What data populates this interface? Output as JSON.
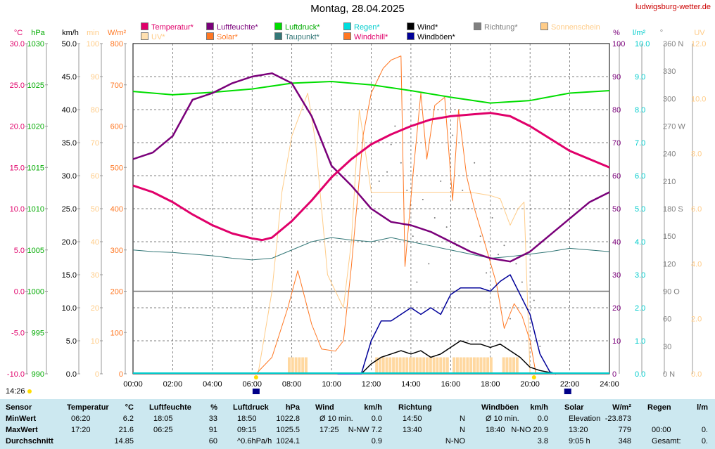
{
  "header": {
    "title": "Montag, 28.04.2025",
    "site": "ludwigsburg-wetter.de",
    "time": "14:26"
  },
  "colors": {
    "temperature": "#e0006a",
    "humidity": "#7a007a",
    "pressure": "#00dd00",
    "rain": "#00cccc",
    "wind": "#000000",
    "direction": "#808080",
    "sunshine": "#ffcc88",
    "uv": "#ffcc88",
    "solar": "#ff7722",
    "dewpoint": "#337777",
    "windchill": "#ff7722",
    "gust": "#000099"
  },
  "legend": [
    {
      "label": "Temperatur*",
      "color": "#e0006a",
      "text": "#e0006a"
    },
    {
      "label": "Luftfeuchte*",
      "color": "#7a007a",
      "text": "#7a007a"
    },
    {
      "label": "Luftdruck*",
      "color": "#00dd00",
      "text": "#00aa00"
    },
    {
      "label": "Regen*",
      "color": "#00dddd",
      "text": "#00cccc"
    },
    {
      "label": "Wind*",
      "color": "#000000",
      "text": "#000000"
    },
    {
      "label": "Richtung*",
      "color": "#808080",
      "text": "#808080"
    },
    {
      "label": "Sonnenschein",
      "color": "#ffcc88",
      "text": "#ffcc88"
    },
    {
      "label": "UV*",
      "color": "#ffe0b0",
      "text": "#ffcc88"
    },
    {
      "label": "Solar*",
      "color": "#ff7722",
      "text": "#ff7722"
    },
    {
      "label": "Taupunkt*",
      "color": "#337777",
      "text": "#337777"
    },
    {
      "label": "Windchill*",
      "color": "#ff7722",
      "text": "#e0006a"
    },
    {
      "label": "Windböen*",
      "color": "#000099",
      "text": "#000000"
    }
  ],
  "chart_data": {
    "type": "line",
    "x_ticks": [
      "00:00",
      "02:00",
      "04:00",
      "06:00",
      "08:00",
      "10:00",
      "12:00",
      "14:00",
      "16:00",
      "18:00",
      "20:00",
      "22:00",
      "24:00"
    ],
    "axes_left": [
      {
        "unit": "°C",
        "color": "#e0006a",
        "ticks": [
          "30.0",
          "25.0",
          "20.0",
          "15.0",
          "10.0",
          "5.0",
          "0.0",
          "-5.0",
          "-10.0"
        ],
        "range": [
          -10,
          30
        ]
      },
      {
        "unit": "hPa",
        "color": "#00aa00",
        "ticks": [
          "1030",
          "1025",
          "1020",
          "1015",
          "1010",
          "1005",
          "1000",
          "995",
          "990"
        ],
        "range": [
          990,
          1030
        ]
      },
      {
        "unit": "km/h",
        "color": "#000000",
        "ticks": [
          "50.0",
          "45.0",
          "40.0",
          "35.0",
          "30.0",
          "25.0",
          "20.0",
          "15.0",
          "10.0",
          "5.0",
          "0.0"
        ],
        "range": [
          0,
          50
        ]
      },
      {
        "unit": "min",
        "color": "#ffcc88",
        "ticks": [
          "100",
          "90",
          "80",
          "70",
          "60",
          "50",
          "40",
          "30",
          "20",
          "10",
          "0"
        ],
        "range": [
          0,
          100
        ]
      },
      {
        "unit": "W/m²",
        "color": "#ff7722",
        "ticks": [
          "800",
          "700",
          "600",
          "500",
          "400",
          "300",
          "200",
          "100",
          "0"
        ],
        "range": [
          0,
          800
        ]
      }
    ],
    "axes_right": [
      {
        "unit": "%",
        "color": "#7a007a",
        "ticks": [
          "100",
          "90",
          "80",
          "70",
          "60",
          "50",
          "40",
          "30",
          "20",
          "10",
          "0"
        ],
        "range": [
          0,
          100
        ]
      },
      {
        "unit": "l/m²",
        "color": "#00cccc",
        "ticks": [
          "10.0",
          "9.0",
          "8.0",
          "7.0",
          "6.0",
          "5.0",
          "4.0",
          "3.0",
          "2.0",
          "1.0",
          "0.0"
        ],
        "range": [
          0,
          10
        ]
      },
      {
        "unit": "°",
        "color": "#808080",
        "ticks": [
          "360 N",
          "330",
          "300",
          "270 W",
          "240",
          "210",
          "180 S",
          "150",
          "120",
          "90 O",
          "60",
          "30",
          "0 N"
        ],
        "range": [
          0,
          360
        ]
      },
      {
        "unit": "UV",
        "color": "#ffcc88",
        "ticks": [
          "12.0",
          "10.0",
          "8.0",
          "6.0",
          "4.0",
          "2.0",
          "0.0"
        ],
        "range": [
          0,
          12
        ]
      }
    ],
    "series": [
      {
        "key": "temperature",
        "axis": "°C",
        "x": [
          0,
          1,
          2,
          3,
          4,
          5,
          6,
          6.5,
          7,
          8,
          9,
          10,
          11,
          12,
          13,
          14,
          15,
          16,
          17,
          18,
          19,
          20,
          21,
          22,
          23,
          24
        ],
        "y": [
          12.8,
          12.0,
          10.8,
          9.3,
          8.0,
          7.0,
          6.4,
          6.2,
          6.5,
          8.5,
          11.0,
          13.8,
          16.0,
          17.8,
          19.0,
          20.0,
          20.8,
          21.2,
          21.4,
          21.6,
          21.2,
          20.0,
          18.5,
          17.0,
          16.0,
          15.0
        ]
      },
      {
        "key": "humidity",
        "axis": "%",
        "x": [
          0,
          1,
          2,
          3,
          4,
          5,
          6,
          7,
          8,
          9,
          10,
          11,
          12,
          13,
          14,
          15,
          16,
          17,
          18,
          19,
          20,
          21,
          22,
          23,
          24
        ],
        "y": [
          65,
          67,
          72,
          83,
          85,
          88,
          90,
          91,
          88,
          78,
          63,
          57,
          50,
          46,
          45,
          43,
          40,
          37,
          35,
          34,
          37,
          42,
          47,
          52,
          55
        ]
      },
      {
        "key": "pressure",
        "axis": "hPa",
        "x": [
          0,
          2,
          4,
          6,
          8,
          10,
          12,
          14,
          16,
          18,
          20,
          22,
          24
        ],
        "y": [
          1024.2,
          1023.8,
          1024.1,
          1024.5,
          1025.2,
          1025.4,
          1025.0,
          1024.3,
          1023.5,
          1022.8,
          1023.1,
          1024.0,
          1024.3
        ]
      },
      {
        "key": "dewpoint",
        "axis": "°C",
        "x": [
          0,
          1,
          2,
          3,
          4,
          5,
          6,
          7,
          8,
          9,
          10,
          11,
          12,
          13,
          14,
          15,
          16,
          17,
          18,
          19,
          20,
          21,
          22,
          23,
          24
        ],
        "y": [
          5.0,
          4.8,
          4.7,
          4.5,
          4.3,
          4.0,
          3.8,
          4.0,
          5.0,
          6.0,
          6.5,
          6.2,
          6.0,
          6.5,
          6.0,
          5.5,
          5.0,
          4.5,
          4.0,
          4.2,
          4.5,
          4.8,
          5.2,
          5.0,
          4.8
        ]
      },
      {
        "key": "solar",
        "axis": "W/m²",
        "x": [
          6.2,
          7,
          7.8,
          8.3,
          9,
          9.5,
          10.2,
          10.6,
          11,
          11.6,
          12,
          12.6,
          13,
          13.5,
          13.7,
          14.1,
          14.5,
          14.8,
          15.2,
          15.7,
          16.1,
          16.4,
          16.8,
          17.2,
          17.7,
          18.3,
          18.7,
          19.2,
          19.6,
          20.0,
          20.3
        ],
        "y": [
          0,
          40,
          160,
          250,
          120,
          60,
          55,
          80,
          260,
          580,
          680,
          740,
          760,
          770,
          260,
          480,
          680,
          520,
          650,
          670,
          420,
          640,
          480,
          400,
          320,
          220,
          110,
          170,
          140,
          80,
          0
        ]
      },
      {
        "key": "sunshine_envelope",
        "axis": "min",
        "x": [
          6.3,
          7.0,
          7.5,
          8.0,
          8.8,
          9.2,
          9.8,
          10.6,
          11.0,
          11.4,
          12.0,
          13.0,
          14.0,
          15.0,
          16.0,
          17.0,
          18.0,
          18.5,
          19.0,
          19.4,
          19.7,
          20.0
        ],
        "y": [
          0,
          25,
          55,
          72,
          85,
          70,
          30,
          20,
          40,
          80,
          55,
          55,
          55,
          55,
          55,
          55,
          54,
          53,
          45,
          50,
          52,
          0
        ]
      },
      {
        "key": "wind",
        "axis": "km/h",
        "x": [
          11.5,
          12,
          12.5,
          13,
          13.5,
          14,
          14.5,
          15,
          15.5,
          16,
          16.5,
          17,
          17.5,
          18,
          18.5,
          19,
          19.5,
          20,
          20.5,
          21,
          21.3
        ],
        "y": [
          0,
          1.5,
          2.5,
          3.0,
          3.5,
          3.0,
          3.5,
          2.5,
          3.0,
          4.0,
          5.0,
          4.5,
          4.5,
          4.0,
          4.5,
          3.5,
          2.5,
          1.0,
          0.5,
          0.2,
          0
        ]
      },
      {
        "key": "gust",
        "axis": "km/h",
        "x": [
          10.3,
          11.5,
          12,
          12.5,
          13,
          13.5,
          14,
          14.5,
          15,
          15.5,
          16,
          16.5,
          17,
          17.5,
          18,
          18.5,
          19,
          19.5,
          20,
          20.5,
          21,
          21.3
        ],
        "y": [
          0,
          0,
          5,
          8,
          8,
          9,
          10,
          9,
          10,
          9,
          12,
          13,
          13,
          13,
          12.5,
          14,
          15,
          12,
          9,
          3,
          0.3,
          0
        ]
      }
    ]
  },
  "table": {
    "headers": [
      {
        "label": "Sensor",
        "unit": ""
      },
      {
        "label": "Temperatur",
        "unit": "°C"
      },
      {
        "label": "Luftfeuchte",
        "unit": "%"
      },
      {
        "label": "Luftdruck",
        "unit": "hPa"
      },
      {
        "label": "Wind",
        "unit": "km/h"
      },
      {
        "label": "Richtung",
        "unit": ""
      },
      {
        "label": "Windböen",
        "unit": "km/h"
      },
      {
        "label": "Solar",
        "unit": "W/m²"
      },
      {
        "label": "Regen",
        "unit": "l/m"
      }
    ],
    "rows": [
      {
        "label": "MinWert",
        "cells": [
          [
            "06:20",
            "6.2"
          ],
          [
            "18:05",
            "33"
          ],
          [
            "18:50",
            "1022.8"
          ],
          [
            "Ø 10 min.",
            "0.0"
          ],
          [
            "14:50",
            "N"
          ],
          [
            "Ø 10 min.",
            "0.0"
          ],
          [
            "Elevation",
            "-23.873"
          ],
          [
            "",
            ""
          ]
        ]
      },
      {
        "label": "MaxWert",
        "cells": [
          [
            "17:20",
            "21.6"
          ],
          [
            "06:25",
            "91"
          ],
          [
            "09:15",
            "1025.5"
          ],
          [
            "17:25",
            "N-NW 7.2"
          ],
          [
            "13:40",
            "N"
          ],
          [
            "18:40",
            "N-NO 20.9"
          ],
          [
            "13:20",
            "779"
          ],
          [
            "00:00",
            "0."
          ]
        ]
      },
      {
        "label": "Durchschnitt",
        "cells": [
          [
            "",
            "14.85"
          ],
          [
            "",
            "60"
          ],
          [
            "^0.6hPa/h",
            "1024.1"
          ],
          [
            "",
            "0.9"
          ],
          [
            "",
            "N-NO"
          ],
          [
            "",
            "3.8"
          ],
          [
            "9:05 h",
            "348"
          ],
          [
            "Gesamt:",
            "0."
          ]
        ]
      }
    ]
  }
}
